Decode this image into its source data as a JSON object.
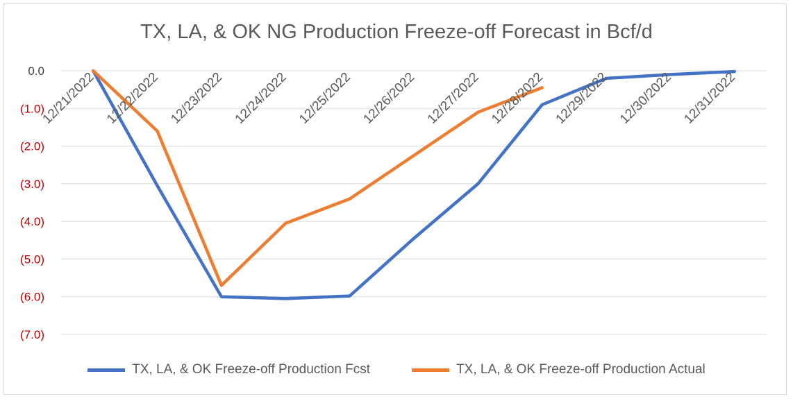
{
  "chart_data": {
    "type": "line",
    "title": "TX, LA, & OK NG Production Freeze-off Forecast in Bcf/d",
    "xlabel": "",
    "ylabel": "",
    "categories": [
      "12/21/2022",
      "12/22/2022",
      "12/23/2022",
      "12/24/2022",
      "12/25/2022",
      "12/26/2022",
      "12/27/2022",
      "12/28/2022",
      "12/29/2022",
      "12/30/2022",
      "12/31/2022"
    ],
    "y_ticks": [
      {
        "value": 0,
        "label": "0.0",
        "color": "#404040"
      },
      {
        "value": -1,
        "label": "(1.0)",
        "color": "#c00000"
      },
      {
        "value": -2,
        "label": "(2.0)",
        "color": "#c00000"
      },
      {
        "value": -3,
        "label": "(3.0)",
        "color": "#c00000"
      },
      {
        "value": -4,
        "label": "(4.0)",
        "color": "#c00000"
      },
      {
        "value": -5,
        "label": "(5.0)",
        "color": "#c00000"
      },
      {
        "value": -6,
        "label": "(6.0)",
        "color": "#c00000"
      },
      {
        "value": -7,
        "label": "(7.0)",
        "color": "#c00000"
      }
    ],
    "ylim": [
      -7,
      0
    ],
    "grid": true,
    "legend_position": "bottom",
    "series": [
      {
        "name": "TX, LA, & OK Freeze-off Production Fcst",
        "color": "#4472c4",
        "values": [
          0.0,
          -3.05,
          -6.0,
          -6.05,
          -5.98,
          -4.45,
          -3.0,
          -0.9,
          -0.2,
          -0.1,
          -0.02
        ]
      },
      {
        "name": "TX, LA, & OK Freeze-off Production Actual",
        "color": "#ed7d31",
        "values": [
          0.0,
          -1.6,
          -5.7,
          -4.05,
          -3.4,
          -2.25,
          -1.1,
          -0.45,
          null,
          null,
          null
        ]
      }
    ]
  }
}
